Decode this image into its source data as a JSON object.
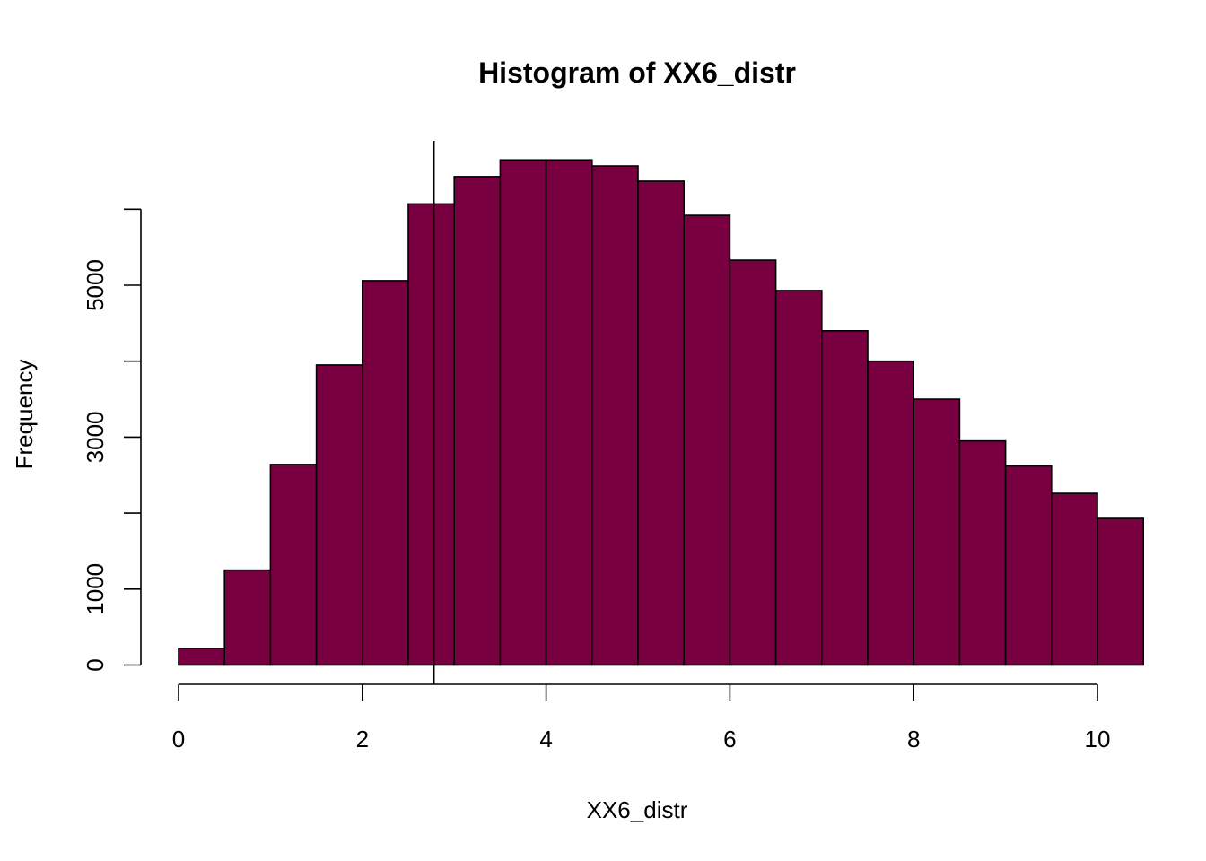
{
  "chart_data": {
    "type": "bar",
    "title": "Histogram of XX6_distr",
    "xlabel": "XX6_distr",
    "ylabel": "Frequency",
    "bar_color": "#780040",
    "bin_width": 0.5,
    "bins": [
      {
        "x0": 0.0,
        "x1": 0.5,
        "count": 220
      },
      {
        "x0": 0.5,
        "x1": 1.0,
        "count": 1250
      },
      {
        "x0": 1.0,
        "x1": 1.5,
        "count": 2640
      },
      {
        "x0": 1.5,
        "x1": 2.0,
        "count": 3950
      },
      {
        "x0": 2.0,
        "x1": 2.5,
        "count": 5060
      },
      {
        "x0": 2.5,
        "x1": 3.0,
        "count": 6070
      },
      {
        "x0": 3.0,
        "x1": 3.5,
        "count": 6430
      },
      {
        "x0": 3.5,
        "x1": 4.0,
        "count": 6650
      },
      {
        "x0": 4.0,
        "x1": 4.5,
        "count": 6650
      },
      {
        "x0": 4.5,
        "x1": 5.0,
        "count": 6570
      },
      {
        "x0": 5.0,
        "x1": 5.5,
        "count": 6370
      },
      {
        "x0": 5.5,
        "x1": 6.0,
        "count": 5920
      },
      {
        "x0": 6.0,
        "x1": 6.5,
        "count": 5330
      },
      {
        "x0": 6.5,
        "x1": 7.0,
        "count": 4930
      },
      {
        "x0": 7.0,
        "x1": 7.5,
        "count": 4400
      },
      {
        "x0": 7.5,
        "x1": 8.0,
        "count": 4000
      },
      {
        "x0": 8.0,
        "x1": 8.5,
        "count": 3500
      },
      {
        "x0": 8.5,
        "x1": 9.0,
        "count": 2950
      },
      {
        "x0": 9.0,
        "x1": 9.5,
        "count": 2620
      },
      {
        "x0": 9.5,
        "x1": 10.0,
        "count": 2260
      },
      {
        "x0": 10.0,
        "x1": 10.5,
        "count": 1930
      }
    ],
    "vertical_line_x": 2.78,
    "x_ticks": [
      0,
      2,
      4,
      6,
      8,
      10
    ],
    "y_ticks": [
      0,
      1000,
      2000,
      3000,
      4000,
      5000,
      6000
    ],
    "y_tick_labels": [
      "0",
      "1000",
      "",
      "3000",
      "",
      "5000",
      ""
    ],
    "xlim": [
      0,
      10.4
    ],
    "ylim": [
      0,
      7100
    ],
    "grid": false,
    "legend": "none"
  }
}
